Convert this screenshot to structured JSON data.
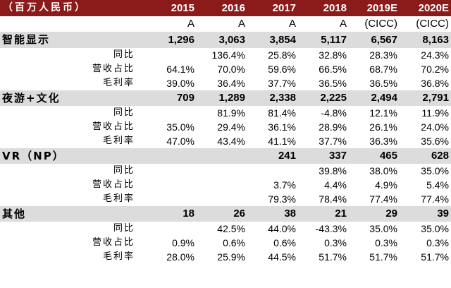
{
  "table": {
    "header_label": "（百万人民币）",
    "years": [
      "2015",
      "2016",
      "2017",
      "2018",
      "2019E",
      "2020E"
    ],
    "sub_labels": [
      "A",
      "A",
      "A",
      "A",
      "(CICC)",
      "(CICC)"
    ],
    "segments": [
      {
        "name": "智能显示",
        "values": [
          "1,296",
          "3,063",
          "3,854",
          "5,117",
          "6,567",
          "8,163"
        ],
        "metrics": [
          {
            "label": "同比",
            "values": [
              "",
              "136.4%",
              "25.8%",
              "32.8%",
              "28.3%",
              "24.3%"
            ]
          },
          {
            "label": "营收占比",
            "values": [
              "64.1%",
              "70.0%",
              "59.6%",
              "66.5%",
              "68.7%",
              "70.2%"
            ]
          },
          {
            "label": "毛利率",
            "values": [
              "39.0%",
              "36.4%",
              "37.7%",
              "36.5%",
              "36.5%",
              "36.8%"
            ]
          }
        ]
      },
      {
        "name": "夜游+文化",
        "values": [
          "709",
          "1,289",
          "2,338",
          "2,225",
          "2,494",
          "2,791"
        ],
        "metrics": [
          {
            "label": "同比",
            "values": [
              "",
              "81.9%",
              "81.4%",
              "-4.8%",
              "12.1%",
              "11.9%"
            ]
          },
          {
            "label": "营收占比",
            "values": [
              "35.0%",
              "29.4%",
              "36.1%",
              "28.9%",
              "26.1%",
              "24.0%"
            ]
          },
          {
            "label": "毛利率",
            "values": [
              "47.0%",
              "43.4%",
              "41.1%",
              "37.7%",
              "36.3%",
              "35.6%"
            ]
          }
        ]
      },
      {
        "name": "VR（NP）",
        "values": [
          "",
          "",
          "241",
          "337",
          "465",
          "628"
        ],
        "metrics": [
          {
            "label": "同比",
            "values": [
              "",
              "",
              "",
              "39.8%",
              "38.0%",
              "35.0%"
            ]
          },
          {
            "label": "营收占比",
            "values": [
              "",
              "",
              "3.7%",
              "4.4%",
              "4.9%",
              "5.4%"
            ]
          },
          {
            "label": "毛利率",
            "values": [
              "",
              "",
              "79.3%",
              "78.4%",
              "77.4%",
              "77.4%"
            ]
          }
        ]
      },
      {
        "name": "其他",
        "values": [
          "18",
          "26",
          "38",
          "21",
          "29",
          "39"
        ],
        "metrics": [
          {
            "label": "同比",
            "values": [
              "",
              "42.5%",
              "44.0%",
              "-43.3%",
              "35.0%",
              "35.0%"
            ]
          },
          {
            "label": "营收占比",
            "values": [
              "0.9%",
              "0.6%",
              "0.6%",
              "0.3%",
              "0.3%",
              "0.3%"
            ]
          },
          {
            "label": "毛利率",
            "values": [
              "28.0%",
              "25.9%",
              "44.5%",
              "51.7%",
              "51.7%",
              "51.7%"
            ]
          }
        ]
      }
    ]
  }
}
